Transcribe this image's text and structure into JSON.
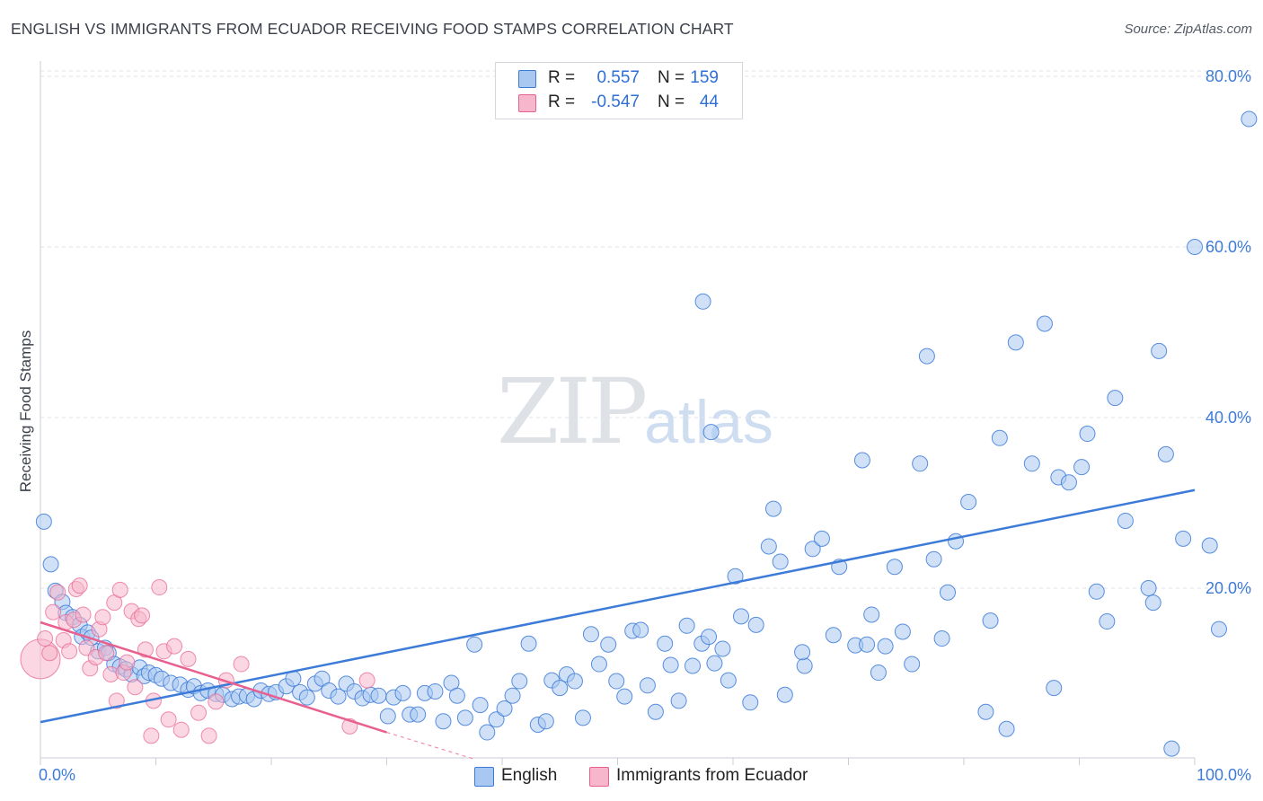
{
  "title": "ENGLISH VS IMMIGRANTS FROM ECUADOR RECEIVING FOOD STAMPS CORRELATION CHART",
  "source": "Source: ZipAtlas.com",
  "watermark": {
    "zip": "ZIP",
    "atlas": "atlas"
  },
  "colors": {
    "blue": "#3d7bd9",
    "pink": "#e8608f",
    "blue_fill": "#a9c8f1",
    "pink_fill": "#f6b6cb",
    "grid": "#dfe2e7"
  },
  "legend": {
    "rows": [
      {
        "r_label": "R =",
        "r_value": "0.557",
        "n_label": "N =",
        "n_value": "159"
      },
      {
        "r_label": "R =",
        "r_value": "-0.547",
        "n_label": "N =",
        "n_value": "44"
      }
    ]
  },
  "bottom_legend": {
    "series1": "English",
    "series2": "Immigrants from Ecuador"
  },
  "chart_data": {
    "type": "scatter",
    "title": "ENGLISH VS IMMIGRANTS FROM ECUADOR RECEIVING FOOD STAMPS CORRELATION CHART",
    "xlabel": "",
    "ylabel": "Receiving Food Stamps",
    "xlim": [
      0,
      100
    ],
    "ylim": [
      0,
      82
    ],
    "x_tick_labels": [
      "0.0%",
      "100.0%"
    ],
    "y_ticks": [
      20,
      40,
      60,
      80
    ],
    "y_tick_labels": [
      "20.0%",
      "40.0%",
      "60.0%",
      "80.0%"
    ],
    "series": [
      {
        "name": "English",
        "color": "#3d7bd9",
        "r": 0.557,
        "n": 159,
        "trend": [
          [
            0,
            4.3
          ],
          [
            100,
            31.5
          ]
        ],
        "points": [
          [
            0.3,
            27.8
          ],
          [
            0.9,
            22.8
          ],
          [
            1.3,
            19.7
          ],
          [
            1.9,
            18.4
          ],
          [
            2.2,
            17.1
          ],
          [
            2.8,
            16.6
          ],
          [
            3.4,
            15.7
          ],
          [
            3.6,
            14.3
          ],
          [
            4.1,
            14.8
          ],
          [
            4.4,
            14.2
          ],
          [
            5.0,
            12.6
          ],
          [
            5.6,
            13.0
          ],
          [
            5.9,
            12.4
          ],
          [
            6.4,
            11.1
          ],
          [
            6.9,
            10.8
          ],
          [
            7.4,
            10.5
          ],
          [
            7.9,
            9.9
          ],
          [
            8.6,
            10.7
          ],
          [
            9.0,
            9.7
          ],
          [
            9.4,
            10.1
          ],
          [
            10.0,
            9.8
          ],
          [
            10.5,
            9.4
          ],
          [
            11.3,
            8.9
          ],
          [
            12.1,
            8.7
          ],
          [
            12.8,
            8.1
          ],
          [
            13.3,
            8.5
          ],
          [
            13.9,
            7.7
          ],
          [
            14.5,
            8.0
          ],
          [
            15.2,
            7.6
          ],
          [
            15.8,
            7.5
          ],
          [
            16.6,
            7.0
          ],
          [
            17.2,
            7.3
          ],
          [
            17.9,
            7.4
          ],
          [
            18.5,
            7.0
          ],
          [
            19.1,
            8.0
          ],
          [
            19.8,
            7.6
          ],
          [
            20.4,
            7.8
          ],
          [
            21.3,
            8.5
          ],
          [
            21.9,
            9.4
          ],
          [
            22.5,
            7.8
          ],
          [
            23.1,
            7.2
          ],
          [
            23.8,
            8.8
          ],
          [
            24.4,
            9.4
          ],
          [
            25.0,
            8.0
          ],
          [
            25.8,
            7.3
          ],
          [
            26.5,
            8.8
          ],
          [
            27.2,
            7.9
          ],
          [
            27.9,
            7.1
          ],
          [
            28.6,
            7.5
          ],
          [
            29.3,
            7.4
          ],
          [
            30.1,
            5.0
          ],
          [
            30.6,
            7.2
          ],
          [
            31.4,
            7.7
          ],
          [
            32.0,
            5.2
          ],
          [
            32.7,
            5.2
          ],
          [
            33.3,
            7.7
          ],
          [
            34.2,
            7.9
          ],
          [
            34.9,
            4.4
          ],
          [
            35.6,
            8.9
          ],
          [
            36.1,
            7.4
          ],
          [
            36.8,
            4.8
          ],
          [
            37.6,
            13.4
          ],
          [
            38.1,
            6.3
          ],
          [
            38.7,
            3.1
          ],
          [
            39.5,
            4.6
          ],
          [
            40.2,
            5.9
          ],
          [
            40.9,
            7.4
          ],
          [
            41.5,
            9.1
          ],
          [
            42.3,
            13.5
          ],
          [
            43.1,
            4.0
          ],
          [
            43.8,
            4.4
          ],
          [
            44.3,
            9.2
          ],
          [
            45.0,
            8.3
          ],
          [
            45.6,
            9.9
          ],
          [
            46.3,
            9.1
          ],
          [
            47.0,
            4.8
          ],
          [
            47.7,
            14.6
          ],
          [
            48.4,
            11.1
          ],
          [
            49.2,
            13.4
          ],
          [
            49.9,
            9.1
          ],
          [
            50.6,
            7.3
          ],
          [
            51.3,
            15.0
          ],
          [
            52.0,
            15.1
          ],
          [
            52.6,
            8.6
          ],
          [
            53.3,
            5.5
          ],
          [
            54.1,
            13.5
          ],
          [
            54.6,
            11.0
          ],
          [
            55.3,
            6.8
          ],
          [
            56.0,
            15.6
          ],
          [
            56.5,
            10.9
          ],
          [
            57.3,
            13.5
          ],
          [
            57.9,
            14.3
          ],
          [
            58.4,
            11.2
          ],
          [
            59.1,
            12.9
          ],
          [
            59.6,
            9.2
          ],
          [
            60.2,
            21.4
          ],
          [
            60.7,
            16.7
          ],
          [
            61.5,
            6.6
          ],
          [
            62.0,
            15.7
          ],
          [
            63.1,
            24.9
          ],
          [
            63.5,
            29.3
          ],
          [
            64.1,
            23.1
          ],
          [
            64.5,
            7.5
          ],
          [
            66.2,
            10.9
          ],
          [
            66.0,
            12.5
          ],
          [
            66.9,
            24.6
          ],
          [
            67.7,
            25.8
          ],
          [
            68.7,
            14.5
          ],
          [
            69.2,
            22.5
          ],
          [
            70.6,
            13.3
          ],
          [
            71.2,
            35.0
          ],
          [
            71.6,
            13.4
          ],
          [
            72.0,
            16.9
          ],
          [
            72.6,
            10.1
          ],
          [
            73.2,
            13.2
          ],
          [
            74.0,
            22.5
          ],
          [
            74.7,
            14.9
          ],
          [
            75.5,
            11.1
          ],
          [
            76.2,
            34.6
          ],
          [
            76.8,
            47.2
          ],
          [
            77.4,
            23.4
          ],
          [
            78.1,
            14.1
          ],
          [
            78.6,
            19.5
          ],
          [
            79.3,
            25.5
          ],
          [
            80.4,
            30.1
          ],
          [
            81.9,
            5.5
          ],
          [
            82.3,
            16.2
          ],
          [
            83.1,
            37.6
          ],
          [
            83.7,
            3.5
          ],
          [
            84.5,
            48.8
          ],
          [
            85.9,
            34.6
          ],
          [
            87.0,
            51.0
          ],
          [
            87.8,
            8.3
          ],
          [
            88.2,
            33.0
          ],
          [
            89.1,
            32.4
          ],
          [
            90.2,
            34.2
          ],
          [
            90.7,
            38.1
          ],
          [
            91.5,
            19.6
          ],
          [
            92.4,
            16.1
          ],
          [
            93.1,
            42.3
          ],
          [
            94.0,
            27.9
          ],
          [
            96.0,
            20.0
          ],
          [
            96.4,
            18.3
          ],
          [
            96.9,
            47.8
          ],
          [
            97.5,
            35.7
          ],
          [
            98.0,
            1.2
          ],
          [
            99.0,
            25.8
          ],
          [
            100.0,
            60.0
          ],
          [
            101.3,
            25.0
          ],
          [
            102.1,
            15.2
          ],
          [
            104.7,
            75.0
          ],
          [
            57.4,
            53.6
          ],
          [
            58.1,
            38.3
          ]
        ]
      },
      {
        "name": "Immigrants from Ecuador",
        "color": "#e8608f",
        "r": -0.547,
        "n": 44,
        "trend": [
          [
            0,
            16.0
          ],
          [
            30,
            3.1
          ]
        ],
        "trend_ext": [
          [
            30,
            3.1
          ],
          [
            37.5,
            0
          ]
        ],
        "points": [
          [
            0.0,
            11.7,
            "big"
          ],
          [
            0.4,
            14.1
          ],
          [
            0.8,
            12.4
          ],
          [
            1.1,
            17.2
          ],
          [
            1.5,
            19.5
          ],
          [
            2.0,
            13.9
          ],
          [
            2.2,
            16.0
          ],
          [
            2.5,
            12.6
          ],
          [
            2.9,
            16.3
          ],
          [
            3.1,
            19.9
          ],
          [
            3.4,
            20.3
          ],
          [
            3.7,
            16.9
          ],
          [
            4.0,
            13.0
          ],
          [
            4.3,
            10.6
          ],
          [
            4.8,
            11.9
          ],
          [
            5.1,
            15.2
          ],
          [
            5.4,
            16.6
          ],
          [
            5.7,
            12.4
          ],
          [
            6.1,
            9.9
          ],
          [
            6.4,
            18.3
          ],
          [
            6.6,
            6.8
          ],
          [
            6.9,
            19.8
          ],
          [
            7.2,
            10.1
          ],
          [
            7.5,
            11.3
          ],
          [
            7.9,
            17.3
          ],
          [
            8.2,
            8.4
          ],
          [
            8.5,
            16.4
          ],
          [
            8.8,
            16.8
          ],
          [
            9.1,
            12.8
          ],
          [
            9.6,
            2.7
          ],
          [
            9.8,
            6.8
          ],
          [
            10.3,
            20.1
          ],
          [
            10.7,
            12.6
          ],
          [
            11.1,
            4.6
          ],
          [
            11.6,
            13.2
          ],
          [
            12.2,
            3.4
          ],
          [
            12.8,
            11.7
          ],
          [
            13.7,
            5.4
          ],
          [
            14.6,
            2.7
          ],
          [
            15.2,
            6.7
          ],
          [
            16.1,
            9.2
          ],
          [
            17.4,
            11.1
          ],
          [
            26.8,
            3.8
          ],
          [
            28.3,
            9.2
          ]
        ]
      }
    ]
  }
}
